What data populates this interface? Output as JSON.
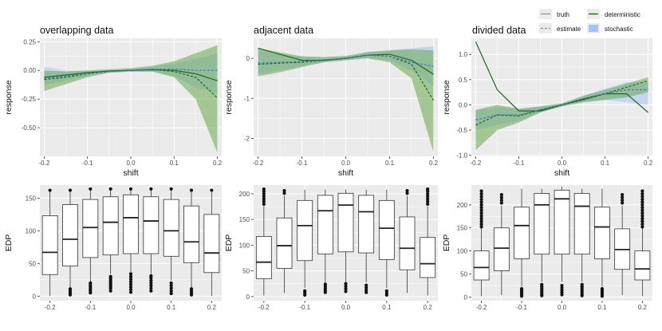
{
  "legend": {
    "items": [
      {
        "label": "truth",
        "style": "solid-gray"
      },
      {
        "label": "estimate",
        "style": "dashed-gray"
      },
      {
        "label": "deterministic",
        "color": "#1a6b1a"
      },
      {
        "label": "stochastic",
        "color": "#7ea1e6"
      }
    ]
  },
  "colors": {
    "panel_bg": "#ebebeb",
    "grid": "#ffffff",
    "deterministic": "#1a6b1a",
    "deterministic_band": "#6aa84f",
    "stochastic_band": "#a4c2f4",
    "box_fill": "#ffffff",
    "box_stroke": "#333333"
  },
  "chart_data": [
    {
      "type": "line",
      "title": "overlapping data",
      "xlabel": "shift",
      "ylabel": "response",
      "xlim": [
        -0.21,
        0.21
      ],
      "ylim": [
        -0.75,
        0.28
      ],
      "xticks": [
        -0.2,
        -0.1,
        0.0,
        0.1,
        0.2
      ],
      "xtick_labels": [
        "-0.2",
        "-0.1",
        "0.0",
        "0.1",
        "0.2"
      ],
      "yticks": [
        -0.5,
        -0.25,
        0.0,
        0.25
      ],
      "ytick_labels": [
        "-0.50",
        "-0.25",
        "0.00",
        "0.25"
      ],
      "x": [
        -0.2,
        -0.15,
        -0.1,
        -0.05,
        0.0,
        0.05,
        0.1,
        0.15,
        0.2
      ],
      "series": [
        {
          "name": "truth (deterministic)",
          "values": [
            -0.06,
            -0.04,
            -0.02,
            -0.005,
            0.0,
            0.005,
            0.0,
            -0.03,
            -0.09
          ]
        },
        {
          "name": "estimate (deterministic)",
          "values": [
            -0.08,
            -0.06,
            -0.03,
            -0.01,
            0.0,
            0.01,
            -0.01,
            -0.06,
            -0.24
          ]
        },
        {
          "name": "estimate (stochastic)",
          "values": [
            -0.07,
            -0.05,
            -0.03,
            -0.01,
            0.0,
            0.01,
            0.01,
            0.0,
            0.0
          ]
        }
      ],
      "bands": [
        {
          "name": "stochastic",
          "lower": [
            -0.13,
            -0.09,
            -0.05,
            -0.02,
            -0.01,
            -0.01,
            -0.05,
            -0.15,
            -0.2
          ],
          "upper": [
            0.03,
            0.0,
            0.0,
            0.0,
            0.01,
            0.03,
            0.06,
            0.1,
            0.15
          ]
        },
        {
          "name": "deterministic",
          "lower": [
            -0.18,
            -0.12,
            -0.06,
            -0.02,
            -0.01,
            -0.01,
            -0.06,
            -0.25,
            -0.72
          ],
          "upper": [
            0.0,
            -0.01,
            0.0,
            0.01,
            0.02,
            0.04,
            0.08,
            0.15,
            0.22
          ]
        }
      ]
    },
    {
      "type": "line",
      "title": "adjacent data",
      "xlabel": "shift",
      "ylabel": "response",
      "xlim": [
        -0.21,
        0.21
      ],
      "ylim": [
        -2.45,
        0.5
      ],
      "xticks": [
        -0.2,
        -0.1,
        0.0,
        0.1,
        0.2
      ],
      "xtick_labels": [
        "-0.2",
        "-0.1",
        "0.0",
        "0.1",
        "0.2"
      ],
      "yticks": [
        -2,
        -1,
        0
      ],
      "ytick_labels": [
        "-2",
        "-1",
        "0"
      ],
      "x": [
        -0.2,
        -0.15,
        -0.1,
        -0.05,
        0.0,
        0.05,
        0.1,
        0.15,
        0.2
      ],
      "series": [
        {
          "name": "truth (deterministic)",
          "values": [
            0.25,
            0.1,
            -0.05,
            -0.05,
            0.0,
            0.08,
            0.1,
            -0.05,
            -0.4
          ]
        },
        {
          "name": "estimate (deterministic)",
          "values": [
            -0.15,
            -0.12,
            -0.1,
            -0.05,
            0.0,
            0.08,
            0.05,
            -0.15,
            -1.05
          ]
        },
        {
          "name": "estimate (stochastic)",
          "values": [
            -0.12,
            -0.1,
            -0.08,
            -0.04,
            0.0,
            0.08,
            0.05,
            -0.1,
            -0.2
          ]
        }
      ],
      "bands": [
        {
          "name": "stochastic",
          "lower": [
            -0.4,
            -0.3,
            -0.2,
            -0.1,
            -0.05,
            0.0,
            -0.05,
            -0.3,
            -0.7
          ],
          "upper": [
            0.2,
            0.1,
            0.05,
            0.03,
            0.05,
            0.15,
            0.2,
            0.25,
            0.3
          ]
        },
        {
          "name": "deterministic",
          "lower": [
            -0.45,
            -0.35,
            -0.22,
            -0.1,
            -0.05,
            0.0,
            -0.1,
            -0.5,
            -2.35
          ],
          "upper": [
            0.25,
            0.15,
            0.05,
            0.03,
            0.06,
            0.16,
            0.2,
            0.22,
            0.2
          ]
        }
      ]
    },
    {
      "type": "line",
      "title": "divided data",
      "xlabel": "shift",
      "ylabel": "response",
      "xlim": [
        -0.21,
        0.21
      ],
      "ylim": [
        -1.02,
        1.32
      ],
      "xticks": [
        -0.2,
        -0.1,
        0.0,
        0.1,
        0.2
      ],
      "xtick_labels": [
        "-0.2",
        "-0.1",
        "0.0",
        "0.1",
        "0.2"
      ],
      "yticks": [
        -1.0,
        -0.5,
        0.0,
        0.5,
        1.0
      ],
      "ytick_labels": [
        "-1.0",
        "-0.5",
        "0.0",
        "0.5",
        "1.0"
      ],
      "x": [
        -0.2,
        -0.15,
        -0.1,
        -0.05,
        0.0,
        0.05,
        0.1,
        0.15,
        0.2
      ],
      "series": [
        {
          "name": "truth (deterministic)",
          "values": [
            1.25,
            0.3,
            -0.12,
            -0.12,
            0.0,
            0.12,
            0.22,
            0.22,
            -0.15
          ]
        },
        {
          "name": "estimate (deterministic)",
          "values": [
            -0.4,
            -0.2,
            -0.22,
            -0.1,
            0.0,
            0.1,
            0.22,
            0.35,
            0.48
          ]
        },
        {
          "name": "estimate (stochastic)",
          "values": [
            -0.3,
            -0.2,
            -0.2,
            -0.1,
            0.0,
            0.1,
            0.22,
            0.3,
            0.3
          ]
        }
      ],
      "bands": [
        {
          "name": "stochastic",
          "lower": [
            -0.5,
            -0.4,
            -0.32,
            -0.15,
            -0.03,
            0.05,
            0.1,
            0.05,
            0.0
          ],
          "upper": [
            -0.1,
            -0.05,
            -0.08,
            -0.03,
            0.03,
            0.18,
            0.32,
            0.45,
            0.45
          ]
        },
        {
          "name": "deterministic",
          "lower": [
            -0.9,
            -0.5,
            -0.35,
            -0.15,
            -0.03,
            0.05,
            0.1,
            0.15,
            0.25
          ],
          "upper": [
            -0.1,
            0.0,
            -0.08,
            -0.03,
            0.03,
            0.18,
            0.3,
            0.42,
            0.55
          ]
        }
      ]
    },
    {
      "type": "boxplot",
      "xlabel": "",
      "ylabel": "EDP",
      "ylim": [
        -7,
        170
      ],
      "yticks": [
        0,
        50,
        100,
        150
      ],
      "ytick_labels": [
        "0",
        "50",
        "100",
        "150"
      ],
      "x": [
        -0.2,
        -0.15,
        -0.1,
        -0.05,
        0.0,
        0.05,
        0.1,
        0.15,
        0.2
      ],
      "xticks": [
        -0.2,
        -0.1,
        0.0,
        0.1,
        0.2
      ],
      "xtick_labels": [
        "-0.2",
        "-0.1",
        "0.0",
        "0.1",
        "0.2"
      ],
      "boxes": [
        {
          "q1": 33,
          "median": 67,
          "q3": 123,
          "whislo": 0,
          "whishi": 160,
          "outliers_low": [],
          "outliers_high": [
            162
          ]
        },
        {
          "q1": 46,
          "median": 87,
          "q3": 140,
          "whislo": 13,
          "whishi": 160,
          "outliers_low": [
            2,
            5,
            8,
            11
          ],
          "outliers_high": [
            162
          ]
        },
        {
          "q1": 59,
          "median": 105,
          "q3": 148,
          "whislo": 22,
          "whishi": 162,
          "outliers_low": [
            5,
            8,
            11,
            14,
            17,
            20
          ],
          "outliers_high": [
            164
          ]
        },
        {
          "q1": 63,
          "median": 113,
          "q3": 152,
          "whislo": 34,
          "whishi": 162,
          "outliers_low": [
            8,
            12,
            15,
            18,
            21,
            24,
            27,
            30
          ],
          "outliers_high": [
            164
          ]
        },
        {
          "q1": 65,
          "median": 120,
          "q3": 155,
          "whislo": 37,
          "whishi": 162,
          "outliers_low": [
            6,
            10,
            14,
            18,
            22,
            26,
            30,
            34
          ],
          "outliers_high": [
            164
          ]
        },
        {
          "q1": 65,
          "median": 115,
          "q3": 152,
          "whislo": 34,
          "whishi": 162,
          "outliers_low": [
            8,
            12,
            16,
            20,
            24,
            28,
            31
          ],
          "outliers_high": [
            164
          ]
        },
        {
          "q1": 61,
          "median": 100,
          "q3": 148,
          "whislo": 24,
          "whishi": 162,
          "outliers_low": [
            4,
            8,
            12,
            16,
            20
          ],
          "outliers_high": [
            164
          ]
        },
        {
          "q1": 51,
          "median": 83,
          "q3": 138,
          "whislo": 13,
          "whishi": 160,
          "outliers_low": [
            2,
            5,
            8,
            11
          ],
          "outliers_high": [
            162
          ]
        },
        {
          "q1": 36,
          "median": 66,
          "q3": 125,
          "whislo": 0,
          "whishi": 160,
          "outliers_low": [],
          "outliers_high": [
            162
          ]
        }
      ]
    },
    {
      "type": "boxplot",
      "xlabel": "",
      "ylabel": "EDP",
      "ylim": [
        -8,
        217
      ],
      "yticks": [
        0,
        50,
        100,
        150,
        200
      ],
      "ytick_labels": [
        "0",
        "50",
        "100",
        "150",
        "200"
      ],
      "x": [
        -0.2,
        -0.15,
        -0.1,
        -0.05,
        0.0,
        0.05,
        0.1,
        0.15,
        0.2
      ],
      "xticks": [
        -0.2,
        -0.1,
        0.0,
        0.1,
        0.2
      ],
      "xtick_labels": [
        "-0.2",
        "-0.1",
        "0.0",
        "0.1",
        "0.2"
      ],
      "boxes": [
        {
          "q1": 35,
          "median": 67,
          "q3": 117,
          "whislo": 2,
          "whishi": 176,
          "outliers_low": [],
          "outliers_high": [
            180,
            185,
            190,
            195,
            200,
            205,
            209
          ]
        },
        {
          "q1": 55,
          "median": 99,
          "q3": 153,
          "whislo": 7,
          "whishi": 196,
          "outliers_low": [],
          "outliers_high": [
            201,
            206
          ]
        },
        {
          "q1": 70,
          "median": 138,
          "q3": 187,
          "whislo": 17,
          "whishi": 208,
          "outliers_low": [
            3,
            7,
            11
          ],
          "outliers_high": []
        },
        {
          "q1": 83,
          "median": 167,
          "q3": 197,
          "whislo": 28,
          "whishi": 208,
          "outliers_low": [
            8,
            12,
            16,
            20,
            24
          ],
          "outliers_high": []
        },
        {
          "q1": 87,
          "median": 178,
          "q3": 201,
          "whislo": 28,
          "whishi": 208,
          "outliers_low": [
            10,
            15,
            20,
            25
          ],
          "outliers_high": []
        },
        {
          "q1": 85,
          "median": 165,
          "q3": 197,
          "whislo": 28,
          "whishi": 208,
          "outliers_low": [
            8,
            12,
            17,
            22
          ],
          "outliers_high": []
        },
        {
          "q1": 72,
          "median": 133,
          "q3": 187,
          "whislo": 17,
          "whishi": 208,
          "outliers_low": [
            3,
            7,
            11
          ],
          "outliers_high": []
        },
        {
          "q1": 52,
          "median": 94,
          "q3": 155,
          "whislo": 7,
          "whishi": 196,
          "outliers_low": [],
          "outliers_high": [
            201,
            206
          ]
        },
        {
          "q1": 37,
          "median": 64,
          "q3": 115,
          "whislo": 2,
          "whishi": 176,
          "outliers_low": [],
          "outliers_high": [
            180,
            185,
            190,
            195,
            200,
            205,
            209
          ]
        }
      ]
    },
    {
      "type": "boxplot",
      "xlabel": "",
      "ylabel": "EDP",
      "ylim": [
        -8,
        243
      ],
      "yticks": [
        0,
        50,
        100,
        150,
        200
      ],
      "ytick_labels": [
        "0",
        "50",
        "100",
        "150",
        "200"
      ],
      "x": [
        -0.2,
        -0.15,
        -0.1,
        -0.05,
        0.0,
        0.05,
        0.1,
        0.15,
        0.2
      ],
      "xticks": [
        -0.2,
        -0.1,
        0.0,
        0.1,
        0.2
      ],
      "xtick_labels": [
        "-0.2",
        "-0.1",
        "0.0",
        "0.1",
        "0.2"
      ],
      "boxes": [
        {
          "q1": 37,
          "median": 64,
          "q3": 100,
          "whislo": 2,
          "whishi": 148,
          "outliers_low": [],
          "outliers_high": [
            152,
            158,
            164,
            170,
            176,
            182,
            188,
            194,
            200,
            206,
            212,
            218,
            224,
            230
          ]
        },
        {
          "q1": 57,
          "median": 106,
          "q3": 150,
          "whislo": 4,
          "whishi": 198,
          "outliers_low": [],
          "outliers_high": [
            204,
            210,
            216,
            222
          ]
        },
        {
          "q1": 83,
          "median": 155,
          "q3": 195,
          "whislo": 23,
          "whishi": 235,
          "outliers_low": [
            2,
            6,
            10,
            14,
            18
          ],
          "outliers_high": []
        },
        {
          "q1": 93,
          "median": 200,
          "q3": 225,
          "whislo": 33,
          "whishi": 235,
          "outliers_low": [
            3,
            7,
            11,
            15,
            19,
            23,
            27
          ],
          "outliers_high": []
        },
        {
          "q1": 93,
          "median": 213,
          "q3": 232,
          "whislo": 33,
          "whishi": 240,
          "outliers_low": [
            5,
            10,
            15,
            20,
            25
          ],
          "outliers_high": []
        },
        {
          "q1": 93,
          "median": 197,
          "q3": 225,
          "whislo": 33,
          "whishi": 235,
          "outliers_low": [
            3,
            7,
            11,
            15,
            19,
            23,
            27
          ],
          "outliers_high": []
        },
        {
          "q1": 83,
          "median": 152,
          "q3": 195,
          "whislo": 23,
          "whishi": 235,
          "outliers_low": [
            2,
            6,
            10,
            14,
            18
          ],
          "outliers_high": []
        },
        {
          "q1": 60,
          "median": 103,
          "q3": 148,
          "whislo": 4,
          "whishi": 198,
          "outliers_low": [],
          "outliers_high": [
            204,
            210,
            216,
            222
          ]
        },
        {
          "q1": 37,
          "median": 61,
          "q3": 100,
          "whislo": 2,
          "whishi": 148,
          "outliers_low": [],
          "outliers_high": [
            152,
            158,
            164,
            170,
            176,
            182,
            188,
            194,
            200,
            206,
            212,
            218,
            224,
            230
          ]
        }
      ]
    }
  ]
}
